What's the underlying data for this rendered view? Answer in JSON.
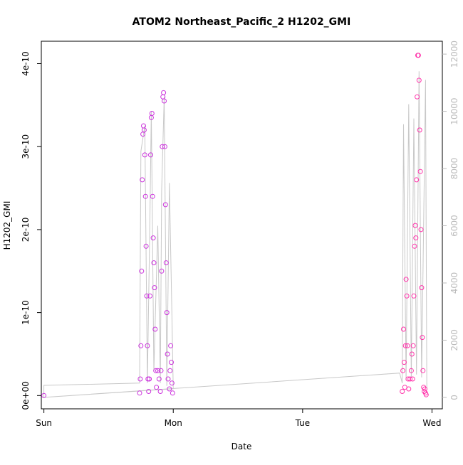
{
  "chart_data": {
    "type": "scatter",
    "title": "ATOM2 Northeast_Pacific_2 H1202_GMI",
    "xlabel": "Date",
    "ylabel": "H1202_GMI",
    "x_ticks": [
      "Sun",
      "Mon",
      "Tue",
      "Wed"
    ],
    "y_ticks": [
      "0e+00",
      "1e-10",
      "2e-10",
      "3e-10",
      "4e-10"
    ],
    "y2_ticks": [
      "0",
      "2000",
      "4000",
      "6000",
      "8000",
      "10000",
      "12000"
    ],
    "xlim": [
      -0.02,
      3.08
    ],
    "ylim": [
      -1.6e-11,
      4.27e-10
    ],
    "y2lim": [
      -400,
      12450
    ],
    "grid": false,
    "colors": {
      "series_early": "#cc33dd",
      "series_late": "#ff33aa",
      "altitude_line": "#c8c8c8",
      "axis": "#000000",
      "secondary_axis": "#bbbbbb"
    },
    "series": [
      {
        "values": [
          [
            0.0,
            0.0
          ],
          [
            0.74,
            3e-12
          ],
          [
            0.745,
            2e-11
          ],
          [
            0.75,
            6e-11
          ],
          [
            0.755,
            1.5e-10
          ],
          [
            0.76,
            2.6e-10
          ],
          [
            0.765,
            3.15e-10
          ],
          [
            0.77,
            3.25e-10
          ],
          [
            0.775,
            3.2e-10
          ],
          [
            0.78,
            2.9e-10
          ],
          [
            0.785,
            2.4e-10
          ],
          [
            0.79,
            1.8e-10
          ],
          [
            0.795,
            1.2e-10
          ],
          [
            0.8,
            6e-11
          ],
          [
            0.805,
            2e-11
          ],
          [
            0.81,
            5e-12
          ],
          [
            0.815,
            2e-11
          ],
          [
            0.82,
            1.2e-10
          ],
          [
            0.825,
            2.9e-10
          ],
          [
            0.83,
            3.35e-10
          ],
          [
            0.835,
            3.4e-10
          ],
          [
            0.84,
            2.4e-10
          ],
          [
            0.845,
            1.9e-10
          ],
          [
            0.85,
            1.6e-10
          ],
          [
            0.855,
            1.3e-10
          ],
          [
            0.86,
            8e-11
          ],
          [
            0.865,
            3e-11
          ],
          [
            0.87,
            1e-11
          ],
          [
            0.88,
            3e-11
          ],
          [
            0.89,
            2e-11
          ],
          [
            0.9,
            5e-12
          ],
          [
            0.905,
            3e-11
          ],
          [
            0.91,
            1.5e-10
          ],
          [
            0.915,
            3e-10
          ],
          [
            0.92,
            3.6e-10
          ],
          [
            0.925,
            3.65e-10
          ],
          [
            0.93,
            3.55e-10
          ],
          [
            0.935,
            3e-10
          ],
          [
            0.94,
            2.3e-10
          ],
          [
            0.945,
            1.6e-10
          ],
          [
            0.95,
            1e-10
          ],
          [
            0.955,
            5e-11
          ],
          [
            0.96,
            2e-11
          ],
          [
            0.97,
            8e-12
          ],
          [
            0.975,
            3e-11
          ],
          [
            0.98,
            6e-11
          ],
          [
            0.985,
            4e-11
          ],
          [
            0.99,
            1.5e-11
          ],
          [
            0.995,
            3e-12
          ]
        ]
      },
      {
        "values": [
          [
            2.77,
            5e-12
          ],
          [
            2.775,
            3e-11
          ],
          [
            2.78,
            8e-11
          ],
          [
            2.785,
            4e-11
          ],
          [
            2.79,
            1e-11
          ],
          [
            2.795,
            6e-11
          ],
          [
            2.8,
            1.4e-10
          ],
          [
            2.805,
            1.2e-10
          ],
          [
            2.81,
            6e-11
          ],
          [
            2.815,
            2e-11
          ],
          [
            2.82,
            8e-12
          ],
          [
            2.83,
            2e-11
          ],
          [
            2.84,
            3e-11
          ],
          [
            2.845,
            5e-11
          ],
          [
            2.85,
            2e-11
          ],
          [
            2.855,
            6e-11
          ],
          [
            2.86,
            1.2e-10
          ],
          [
            2.865,
            1.8e-10
          ],
          [
            2.87,
            2.05e-10
          ],
          [
            2.875,
            1.9e-10
          ],
          [
            2.88,
            2.6e-10
          ],
          [
            2.885,
            3.6e-10
          ],
          [
            2.89,
            4.1e-10
          ],
          [
            2.895,
            4.1e-10
          ],
          [
            2.9,
            3.8e-10
          ],
          [
            2.905,
            3.2e-10
          ],
          [
            2.91,
            2.7e-10
          ],
          [
            2.915,
            2e-10
          ],
          [
            2.92,
            1.3e-10
          ],
          [
            2.925,
            7e-11
          ],
          [
            2.93,
            3e-11
          ],
          [
            2.935,
            1e-11
          ],
          [
            2.94,
            5e-12
          ],
          [
            2.945,
            8e-12
          ],
          [
            2.95,
            3e-12
          ],
          [
            2.955,
            1e-12
          ]
        ]
      }
    ],
    "altitude_series": {
      "values": [
        [
          0.0,
          0
        ],
        [
          0.0,
          420
        ],
        [
          0.74,
          500
        ],
        [
          0.75,
          8600
        ],
        [
          0.78,
          9500
        ],
        [
          0.8,
          500
        ],
        [
          0.82,
          6500
        ],
        [
          0.83,
          10000
        ],
        [
          0.85,
          900
        ],
        [
          0.88,
          6000
        ],
        [
          0.9,
          500
        ],
        [
          0.91,
          7200
        ],
        [
          0.93,
          10500
        ],
        [
          0.95,
          400
        ],
        [
          0.97,
          7500
        ],
        [
          0.99,
          2800
        ],
        [
          1.0,
          300
        ],
        [
          0.0,
          0
        ],
        [
          2.75,
          850
        ],
        [
          2.77,
          500
        ],
        [
          2.78,
          9550
        ],
        [
          2.8,
          600
        ],
        [
          2.82,
          10250
        ],
        [
          2.84,
          700
        ],
        [
          2.86,
          9750
        ],
        [
          2.88,
          800
        ],
        [
          2.9,
          11400
        ],
        [
          2.92,
          700
        ],
        [
          2.95,
          11100
        ],
        [
          2.96,
          300
        ]
      ]
    }
  }
}
